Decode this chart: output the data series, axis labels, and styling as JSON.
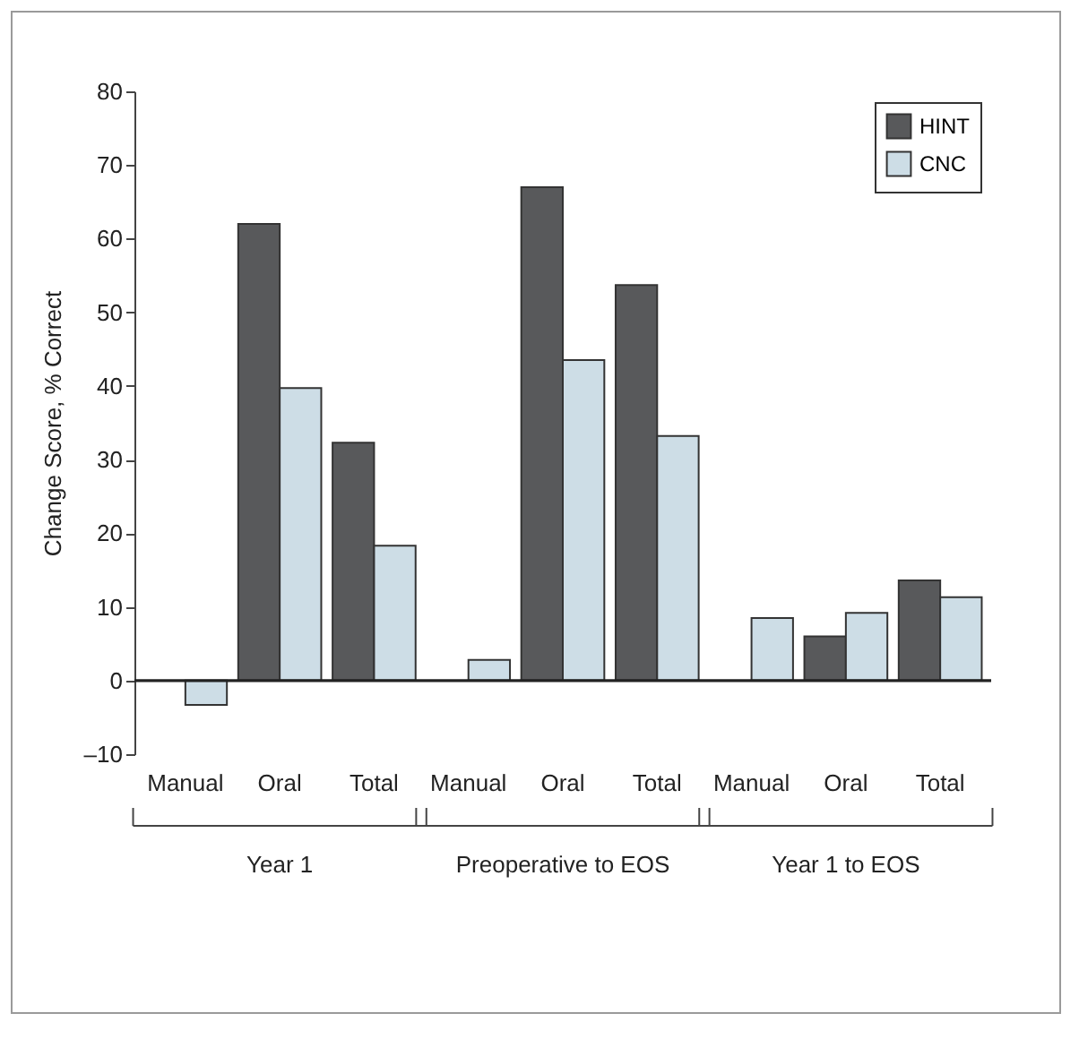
{
  "chart_data": {
    "type": "bar",
    "ylabel": "Change Score, % Correct",
    "categories": [
      "Manual",
      "Oral",
      "Total",
      "Manual",
      "Oral",
      "Total",
      "Manual",
      "Oral",
      "Total"
    ],
    "series": [
      {
        "name": "HINT",
        "color": "#58595b",
        "values": [
          null,
          62,
          32.3,
          null,
          67,
          53.7,
          null,
          6,
          13.6
        ]
      },
      {
        "name": "CNC",
        "color": "#cddde6",
        "values": [
          -3.3,
          39.7,
          18.3,
          2.8,
          43.5,
          33.2,
          8.5,
          9.2,
          11.3
        ]
      }
    ],
    "ylim": [
      -10,
      80
    ],
    "yticks": [
      {
        "value": -10,
        "label": "–10"
      },
      0,
      10,
      20,
      30,
      40,
      50,
      60,
      70,
      80
    ],
    "ref_lines": [
      {
        "axis": "y",
        "value": 0,
        "color": "#222222"
      }
    ],
    "annotations": [
      "Year 1",
      "Preoperative to EOS",
      "Year 1 to EOS"
    ],
    "legend": "top right",
    "grid": false
  }
}
